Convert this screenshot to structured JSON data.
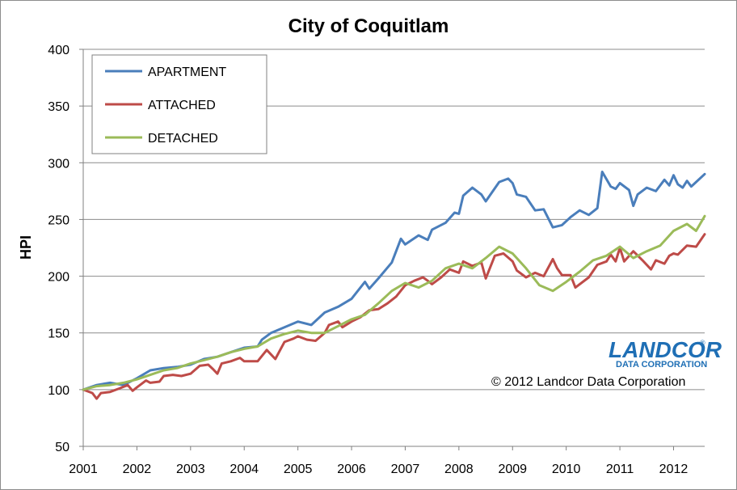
{
  "chart_data": {
    "type": "line",
    "title": "City of Coquitlam",
    "xlabel": "",
    "ylabel": "HPI",
    "xlim": [
      2001,
      2012.58
    ],
    "ylim": [
      50,
      400
    ],
    "yticks": [
      50,
      100,
      150,
      200,
      250,
      300,
      350,
      400
    ],
    "xticks": [
      "2001",
      "2002",
      "2003",
      "2004",
      "2005",
      "2006",
      "2007",
      "2008",
      "2009",
      "2010",
      "2011",
      "2012"
    ],
    "grid": "horizontal",
    "legend_position": "top-left",
    "series": [
      {
        "name": "APARTMENT",
        "color": "#4a7ebb",
        "points": [
          [
            2001.0,
            100
          ],
          [
            2001.25,
            104
          ],
          [
            2001.5,
            106
          ],
          [
            2001.75,
            104
          ],
          [
            2002.0,
            110
          ],
          [
            2002.25,
            117
          ],
          [
            2002.5,
            119
          ],
          [
            2002.75,
            120
          ],
          [
            2003.0,
            122
          ],
          [
            2003.25,
            127
          ],
          [
            2003.5,
            129
          ],
          [
            2003.75,
            133
          ],
          [
            2004.0,
            137
          ],
          [
            2004.25,
            138
          ],
          [
            2004.33,
            144
          ],
          [
            2004.5,
            150
          ],
          [
            2004.75,
            155
          ],
          [
            2005.0,
            160
          ],
          [
            2005.25,
            157
          ],
          [
            2005.5,
            168
          ],
          [
            2005.75,
            173
          ],
          [
            2006.0,
            180
          ],
          [
            2006.25,
            195
          ],
          [
            2006.33,
            189
          ],
          [
            2006.5,
            198
          ],
          [
            2006.75,
            212
          ],
          [
            2006.92,
            233
          ],
          [
            2007.0,
            228
          ],
          [
            2007.25,
            236
          ],
          [
            2007.42,
            232
          ],
          [
            2007.5,
            241
          ],
          [
            2007.75,
            247
          ],
          [
            2007.92,
            256
          ],
          [
            2008.0,
            255
          ],
          [
            2008.08,
            271
          ],
          [
            2008.25,
            278
          ],
          [
            2008.42,
            272
          ],
          [
            2008.5,
            266
          ],
          [
            2008.75,
            283
          ],
          [
            2008.92,
            286
          ],
          [
            2009.0,
            282
          ],
          [
            2009.08,
            272
          ],
          [
            2009.25,
            270
          ],
          [
            2009.42,
            258
          ],
          [
            2009.58,
            259
          ],
          [
            2009.75,
            243
          ],
          [
            2009.92,
            245
          ],
          [
            2010.08,
            252
          ],
          [
            2010.25,
            258
          ],
          [
            2010.42,
            254
          ],
          [
            2010.58,
            260
          ],
          [
            2010.67,
            292
          ],
          [
            2010.83,
            279
          ],
          [
            2010.92,
            277
          ],
          [
            2011.0,
            282
          ],
          [
            2011.17,
            276
          ],
          [
            2011.25,
            262
          ],
          [
            2011.33,
            272
          ],
          [
            2011.5,
            278
          ],
          [
            2011.67,
            275
          ],
          [
            2011.83,
            285
          ],
          [
            2011.92,
            280
          ],
          [
            2012.0,
            289
          ],
          [
            2012.08,
            281
          ],
          [
            2012.17,
            278
          ],
          [
            2012.25,
            284
          ],
          [
            2012.33,
            279
          ],
          [
            2012.42,
            283
          ],
          [
            2012.58,
            290
          ]
        ]
      },
      {
        "name": "ATTACHED",
        "color": "#be4b48",
        "points": [
          [
            2001.0,
            100
          ],
          [
            2001.17,
            97
          ],
          [
            2001.25,
            92
          ],
          [
            2001.33,
            97
          ],
          [
            2001.5,
            98
          ],
          [
            2001.67,
            101
          ],
          [
            2001.83,
            104
          ],
          [
            2001.92,
            99
          ],
          [
            2002.0,
            102
          ],
          [
            2002.17,
            108
          ],
          [
            2002.25,
            106
          ],
          [
            2002.42,
            107
          ],
          [
            2002.5,
            112
          ],
          [
            2002.67,
            113
          ],
          [
            2002.83,
            112
          ],
          [
            2003.0,
            114
          ],
          [
            2003.17,
            121
          ],
          [
            2003.33,
            122
          ],
          [
            2003.42,
            118
          ],
          [
            2003.5,
            114
          ],
          [
            2003.58,
            123
          ],
          [
            2003.75,
            125
          ],
          [
            2003.92,
            128
          ],
          [
            2004.0,
            125
          ],
          [
            2004.25,
            125
          ],
          [
            2004.42,
            135
          ],
          [
            2004.58,
            127
          ],
          [
            2004.75,
            142
          ],
          [
            2004.92,
            145
          ],
          [
            2005.0,
            147
          ],
          [
            2005.17,
            144
          ],
          [
            2005.33,
            143
          ],
          [
            2005.5,
            150
          ],
          [
            2005.58,
            157
          ],
          [
            2005.75,
            160
          ],
          [
            2005.83,
            155
          ],
          [
            2006.0,
            160
          ],
          [
            2006.17,
            164
          ],
          [
            2006.33,
            170
          ],
          [
            2006.5,
            171
          ],
          [
            2006.67,
            176
          ],
          [
            2006.83,
            182
          ],
          [
            2007.0,
            192
          ],
          [
            2007.17,
            196
          ],
          [
            2007.33,
            199
          ],
          [
            2007.42,
            196
          ],
          [
            2007.5,
            193
          ],
          [
            2007.67,
            199
          ],
          [
            2007.83,
            206
          ],
          [
            2008.0,
            203
          ],
          [
            2008.08,
            213
          ],
          [
            2008.25,
            209
          ],
          [
            2008.42,
            212
          ],
          [
            2008.5,
            198
          ],
          [
            2008.67,
            218
          ],
          [
            2008.83,
            220
          ],
          [
            2009.0,
            213
          ],
          [
            2009.08,
            205
          ],
          [
            2009.25,
            199
          ],
          [
            2009.42,
            203
          ],
          [
            2009.58,
            200
          ],
          [
            2009.75,
            215
          ],
          [
            2009.83,
            207
          ],
          [
            2009.92,
            201
          ],
          [
            2010.08,
            201
          ],
          [
            2010.17,
            190
          ],
          [
            2010.42,
            199
          ],
          [
            2010.58,
            210
          ],
          [
            2010.75,
            213
          ],
          [
            2010.83,
            219
          ],
          [
            2010.92,
            213
          ],
          [
            2011.0,
            225
          ],
          [
            2011.08,
            213
          ],
          [
            2011.25,
            222
          ],
          [
            2011.42,
            214
          ],
          [
            2011.58,
            206
          ],
          [
            2011.67,
            214
          ],
          [
            2011.83,
            211
          ],
          [
            2012.0,
            220
          ],
          [
            2012.08,
            219
          ],
          [
            2012.25,
            227
          ],
          [
            2012.42,
            226
          ],
          [
            2012.58,
            237
          ],
          [
            2011.92,
            218
          ]
        ]
      },
      {
        "name": "DETACHED",
        "color": "#9bbb59",
        "points": [
          [
            2001.0,
            100
          ],
          [
            2001.25,
            103
          ],
          [
            2001.5,
            104
          ],
          [
            2001.75,
            106
          ],
          [
            2002.0,
            109
          ],
          [
            2002.25,
            113
          ],
          [
            2002.5,
            117
          ],
          [
            2002.75,
            119
          ],
          [
            2003.0,
            123
          ],
          [
            2003.25,
            126
          ],
          [
            2003.5,
            129
          ],
          [
            2003.75,
            133
          ],
          [
            2004.0,
            136
          ],
          [
            2004.25,
            138
          ],
          [
            2004.5,
            145
          ],
          [
            2004.75,
            149
          ],
          [
            2005.0,
            152
          ],
          [
            2005.25,
            150
          ],
          [
            2005.5,
            150
          ],
          [
            2005.75,
            156
          ],
          [
            2006.0,
            162
          ],
          [
            2006.25,
            166
          ],
          [
            2006.5,
            176
          ],
          [
            2006.75,
            187
          ],
          [
            2007.0,
            194
          ],
          [
            2007.25,
            190
          ],
          [
            2007.5,
            196
          ],
          [
            2007.75,
            207
          ],
          [
            2008.0,
            211
          ],
          [
            2008.25,
            207
          ],
          [
            2008.5,
            216
          ],
          [
            2008.75,
            226
          ],
          [
            2009.0,
            220
          ],
          [
            2009.25,
            207
          ],
          [
            2009.5,
            192
          ],
          [
            2009.75,
            187
          ],
          [
            2010.0,
            195
          ],
          [
            2010.25,
            204
          ],
          [
            2010.5,
            214
          ],
          [
            2010.75,
            218
          ],
          [
            2011.0,
            226
          ],
          [
            2011.25,
            216
          ],
          [
            2011.5,
            222
          ],
          [
            2011.75,
            227
          ],
          [
            2012.0,
            240
          ],
          [
            2012.25,
            246
          ],
          [
            2012.42,
            240
          ],
          [
            2012.58,
            253
          ]
        ]
      }
    ]
  },
  "logo": {
    "name": "LANDCOR",
    "tagline": "DATA CORPORATION",
    "registered": "®"
  },
  "copyright": "© 2012 Landcor Data Corporation"
}
